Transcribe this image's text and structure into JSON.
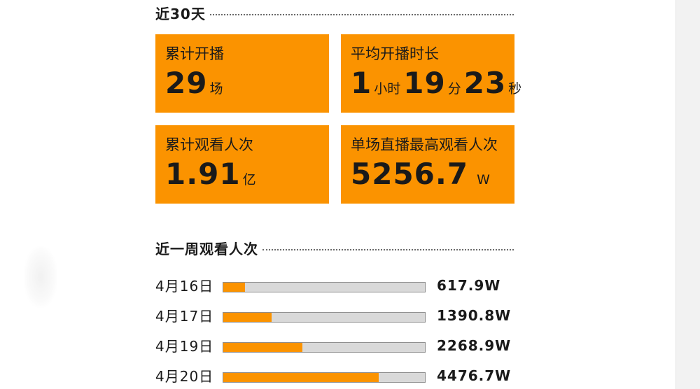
{
  "section30": {
    "title": "近30天"
  },
  "stats": [
    {
      "label": "累计开播",
      "parts": [
        {
          "num": "29",
          "unit": "场"
        }
      ]
    },
    {
      "label": "平均开播时长",
      "parts": [
        {
          "num": "1",
          "unit": "小时"
        },
        {
          "num": "19",
          "unit": "分"
        },
        {
          "num": "23",
          "unit": "秒"
        }
      ]
    },
    {
      "label": "累计观看人次",
      "parts": [
        {
          "num": "1.91",
          "unit": "亿"
        }
      ]
    },
    {
      "label": "单场直播最高观看人次",
      "parts": [
        {
          "num": "5256.7",
          "unit": "W"
        }
      ]
    }
  ],
  "sectionWeek": {
    "title": "近一周观看人次"
  },
  "colors": {
    "accent": "#fb9300",
    "track": "#d9d9d9"
  },
  "chart_data": {
    "type": "bar",
    "orientation": "horizontal",
    "categories": [
      "4月16日",
      "4月17日",
      "4月19日",
      "4月20日"
    ],
    "values": [
      617.9,
      1390.8,
      2268.9,
      4476.7
    ],
    "value_labels": [
      "617.9W",
      "1390.8W",
      "2268.9W",
      "4476.7W"
    ],
    "xlim": [
      0,
      5800
    ]
  }
}
